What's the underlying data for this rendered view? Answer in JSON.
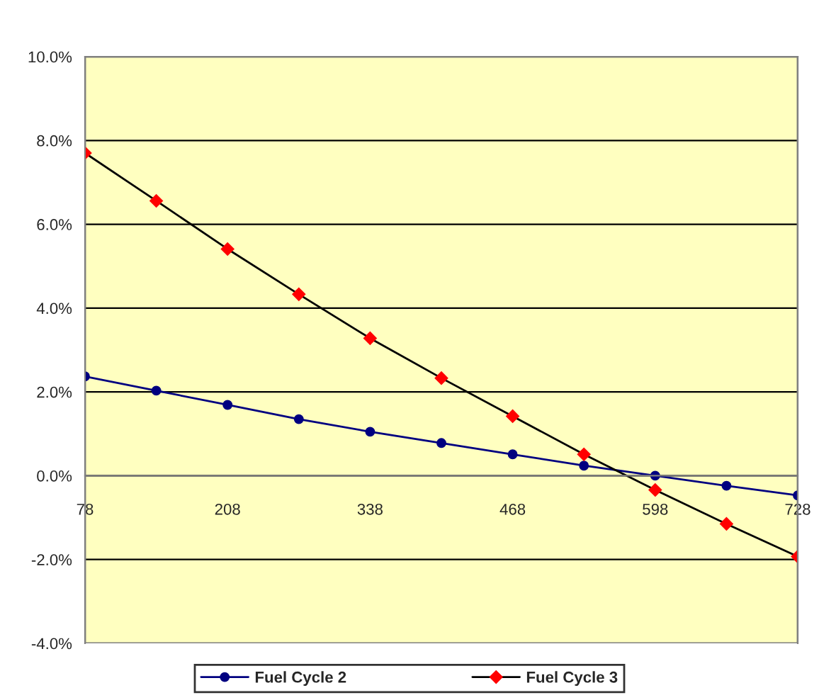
{
  "chart_data": {
    "type": "line",
    "x": [
      78,
      143,
      208,
      273,
      338,
      403,
      468,
      533,
      598,
      663,
      728
    ],
    "series": [
      {
        "name": "Fuel Cycle 2",
        "color": "#000080",
        "marker": "circle",
        "values": [
          2.37,
          2.03,
          1.69,
          1.35,
          1.05,
          0.78,
          0.51,
          0.24,
          0.0,
          -0.24,
          -0.47
        ]
      },
      {
        "name": "Fuel Cycle 3",
        "color": "#ff0000",
        "values": [
          7.7,
          6.56,
          5.41,
          4.33,
          3.28,
          2.33,
          1.42,
          0.51,
          -0.34,
          -1.15,
          -1.93
        ]
      }
    ],
    "xlim": [
      78,
      728
    ],
    "xticks": [
      78,
      208,
      338,
      468,
      598,
      728
    ],
    "ylim": [
      -4,
      10
    ],
    "yticks": [
      {
        "value": -4,
        "label": "-4.0%"
      },
      {
        "value": -2,
        "label": "-2.0%"
      },
      {
        "value": 0,
        "label": "0.0%"
      },
      {
        "value": 2,
        "label": "2.0%"
      },
      {
        "value": 4,
        "label": "4.0%"
      },
      {
        "value": 6,
        "label": "6.0%"
      },
      {
        "value": 8,
        "label": "8.0%"
      },
      {
        "value": 10,
        "label": "10.0%"
      }
    ],
    "grid": "y",
    "legend": "bottom",
    "marker": "diamond",
    "line_style": "solid"
  }
}
